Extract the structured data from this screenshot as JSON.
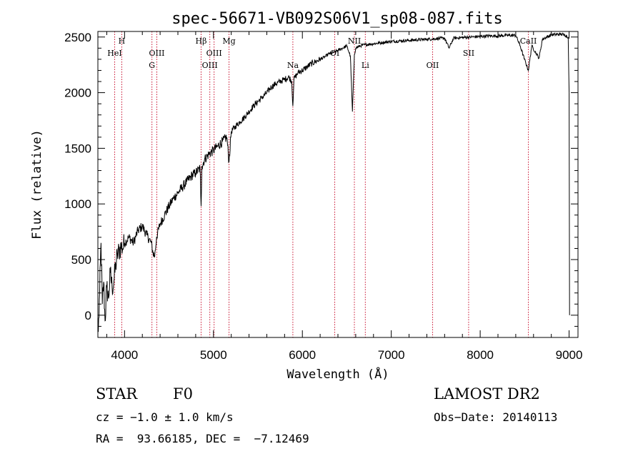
{
  "chart_data": {
    "type": "line",
    "title": "spec-56671-VB092S06V1_sp08-087.fits",
    "xlabel": "Wavelength (Å)",
    "ylabel": "Flux (relative)",
    "xlim": [
      3700,
      9100
    ],
    "ylim": [
      -200,
      2550
    ],
    "xticks": [
      4000,
      5000,
      6000,
      7000,
      8000,
      9000
    ],
    "yticks": [
      0,
      500,
      1000,
      1500,
      2000,
      2500
    ],
    "grid": false,
    "series": [
      {
        "x": [
          3705,
          3720,
          3735,
          3750,
          3765,
          3780,
          3800,
          3820,
          3840,
          3860,
          3880,
          3900,
          3920,
          3940,
          3960,
          3980,
          4000,
          4050,
          4100,
          4150,
          4200,
          4250,
          4300,
          4320,
          4340,
          4360,
          4400,
          4450,
          4500,
          4550,
          4600,
          4650,
          4700,
          4750,
          4800,
          4850,
          4861,
          4870,
          4900,
          4950,
          5000,
          5050,
          5100,
          5150,
          5175,
          5200,
          5250,
          5300,
          5350,
          5400,
          5450,
          5500,
          5550,
          5600,
          5650,
          5700,
          5750,
          5800,
          5850,
          5880,
          5893,
          5905,
          5950,
          6000,
          6050,
          6100,
          6150,
          6200,
          6250,
          6300,
          6350,
          6400,
          6450,
          6500,
          6540,
          6563,
          6585,
          6600,
          6650,
          6700,
          6800,
          6900,
          7000,
          7100,
          7200,
          7300,
          7400,
          7500,
          7600,
          7650,
          7700,
          7800,
          7900,
          8000,
          8100,
          8200,
          8300,
          8400,
          8450,
          8498,
          8542,
          8580,
          8662,
          8700,
          8800,
          8900,
          8950,
          8990,
          9000,
          9005
        ],
        "y": [
          -150,
          200,
          650,
          100,
          300,
          -50,
          250,
          150,
          380,
          250,
          300,
          450,
          540,
          580,
          620,
          600,
          650,
          700,
          650,
          760,
          800,
          720,
          650,
          560,
          530,
          700,
          820,
          900,
          980,
          1050,
          1100,
          1150,
          1200,
          1250,
          1280,
          1320,
          980,
          1340,
          1400,
          1450,
          1480,
          1520,
          1560,
          1600,
          1380,
          1650,
          1700,
          1740,
          1780,
          1830,
          1880,
          1920,
          1960,
          2000,
          2050,
          2080,
          2100,
          2120,
          2140,
          2100,
          1880,
          2120,
          2180,
          2200,
          2230,
          2260,
          2280,
          2300,
          2320,
          2350,
          2360,
          2380,
          2400,
          2420,
          2330,
          1830,
          2340,
          2400,
          2420,
          2430,
          2440,
          2450,
          2460,
          2465,
          2470,
          2475,
          2480,
          2485,
          2490,
          2400,
          2490,
          2495,
          2500,
          2505,
          2510,
          2510,
          2515,
          2515,
          2420,
          2300,
          2200,
          2420,
          2310,
          2480,
          2520,
          2525,
          2520,
          2500,
          2000,
          0
        ]
      }
    ],
    "line_markers": [
      {
        "label": "HeI",
        "x": 3889,
        "row": 2
      },
      {
        "label": "H",
        "x": 3969,
        "row": 1
      },
      {
        "label": "G",
        "x": 4308,
        "row": 3
      },
      {
        "label": "OIII",
        "x": 4363,
        "row": 2
      },
      {
        "label": "Hβ",
        "x": 4861,
        "row": 1
      },
      {
        "label": "OIII",
        "x": 4959,
        "row": 3
      },
      {
        "label": "OIII",
        "x": 5007,
        "row": 2
      },
      {
        "label": "Mg",
        "x": 5175,
        "row": 1
      },
      {
        "label": "Na",
        "x": 5893,
        "row": 3
      },
      {
        "label": "OI",
        "x": 6364,
        "row": 2
      },
      {
        "label": "NII",
        "x": 6585,
        "row": 1
      },
      {
        "label": "Li",
        "x": 6708,
        "row": 3
      },
      {
        "label": "OII",
        "x": 7465,
        "row": 3
      },
      {
        "label": "SII",
        "x": 7870,
        "row": 2
      },
      {
        "label": "CaII",
        "x": 8542,
        "row": 1
      }
    ],
    "marker_color": "#c8102e",
    "line_color": "#000000"
  },
  "info": {
    "object_class": "STAR",
    "subclass": "F0",
    "survey": "LAMOST DR2",
    "cz": "cz = −1.0 ± 1.0 km/s",
    "obs_date": "Obs−Date: 20140113",
    "radec": "RA =  93.66185, DEC =  −7.12469"
  }
}
